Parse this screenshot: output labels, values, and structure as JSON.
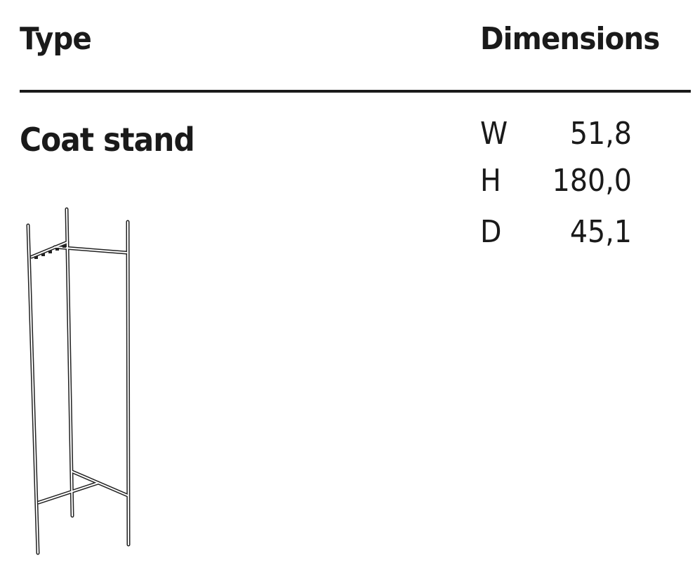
{
  "header": {
    "type_label": "Type",
    "dimensions_label": "Dimensions"
  },
  "product": {
    "name": "Coat stand"
  },
  "dimensions": [
    {
      "key": "W",
      "value": "51,8"
    },
    {
      "key": "H",
      "value": "180,0"
    },
    {
      "key": "D",
      "value": "45,1"
    }
  ]
}
